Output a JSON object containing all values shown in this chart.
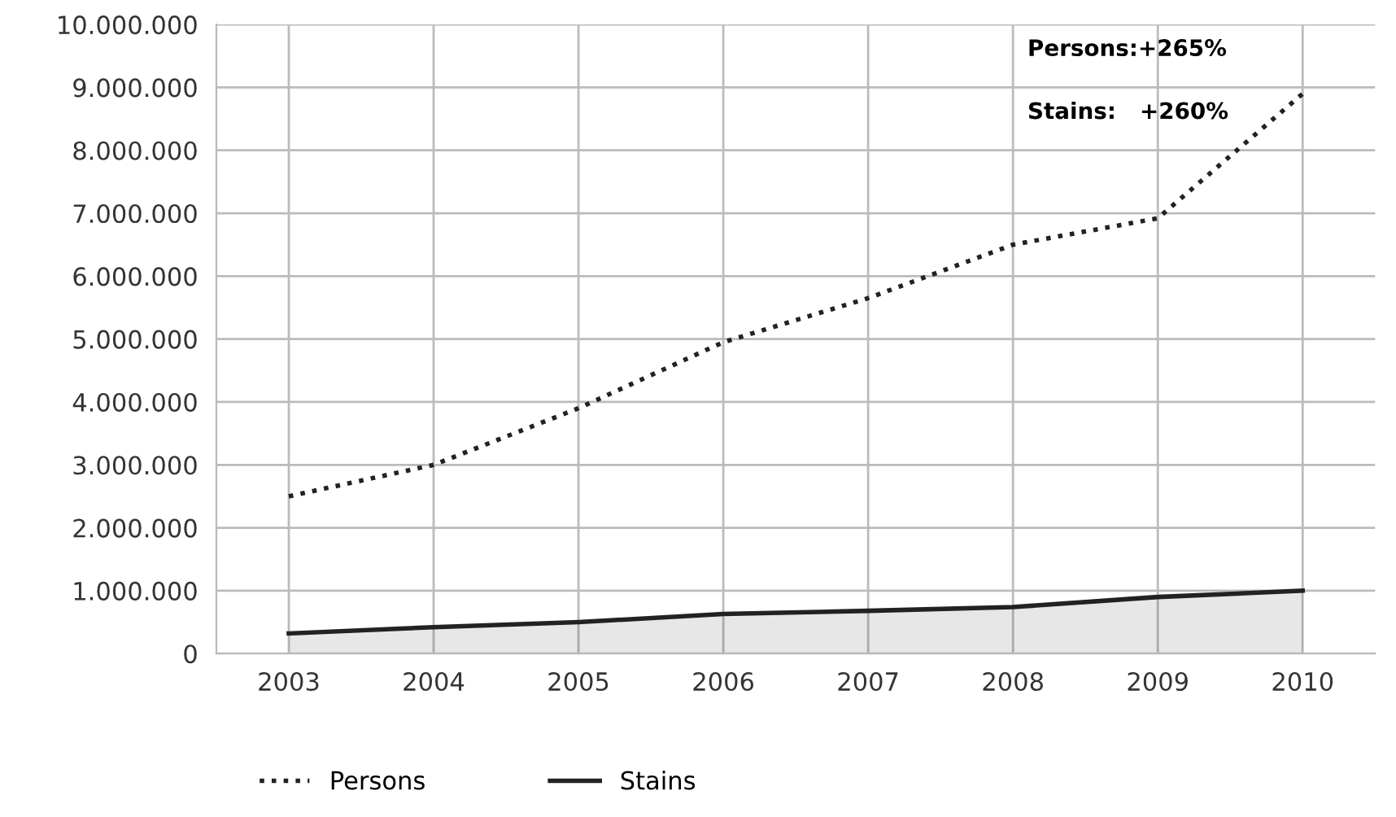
{
  "chart_data": {
    "type": "line",
    "categories": [
      "2003",
      "2004",
      "2005",
      "2006",
      "2007",
      "2008",
      "2009",
      "2010"
    ],
    "series": [
      {
        "name": "Persons",
        "line_style": "dotted",
        "color": "#222222",
        "values": [
          2500000,
          3000000,
          3900000,
          4950000,
          5650000,
          6500000,
          6920000,
          8900000
        ]
      },
      {
        "name": "Stains",
        "type": "area",
        "line_style": "solid",
        "color": "#222222",
        "values": [
          320000,
          420000,
          500000,
          630000,
          680000,
          740000,
          900000,
          1000000
        ]
      }
    ],
    "ylim": [
      0,
      10000000
    ],
    "yticks": [
      {
        "value": 0,
        "label": "0"
      },
      {
        "value": 1000000,
        "label": "1.000.000"
      },
      {
        "value": 2000000,
        "label": "2.000.000"
      },
      {
        "value": 3000000,
        "label": "3.000.000"
      },
      {
        "value": 4000000,
        "label": "4.000.000"
      },
      {
        "value": 5000000,
        "label": "5.000.000"
      },
      {
        "value": 6000000,
        "label": "6.000.000"
      },
      {
        "value": 7000000,
        "label": "7.000.000"
      },
      {
        "value": 8000000,
        "label": "8.000.000"
      },
      {
        "value": 9000000,
        "label": "9.000.000"
      },
      {
        "value": 10000000,
        "label": "10.000.000"
      }
    ],
    "annotations": [
      "Persons:+265%",
      "Stains:   +260%"
    ],
    "grid": true,
    "legend": "bottom left",
    "marker": "none"
  }
}
